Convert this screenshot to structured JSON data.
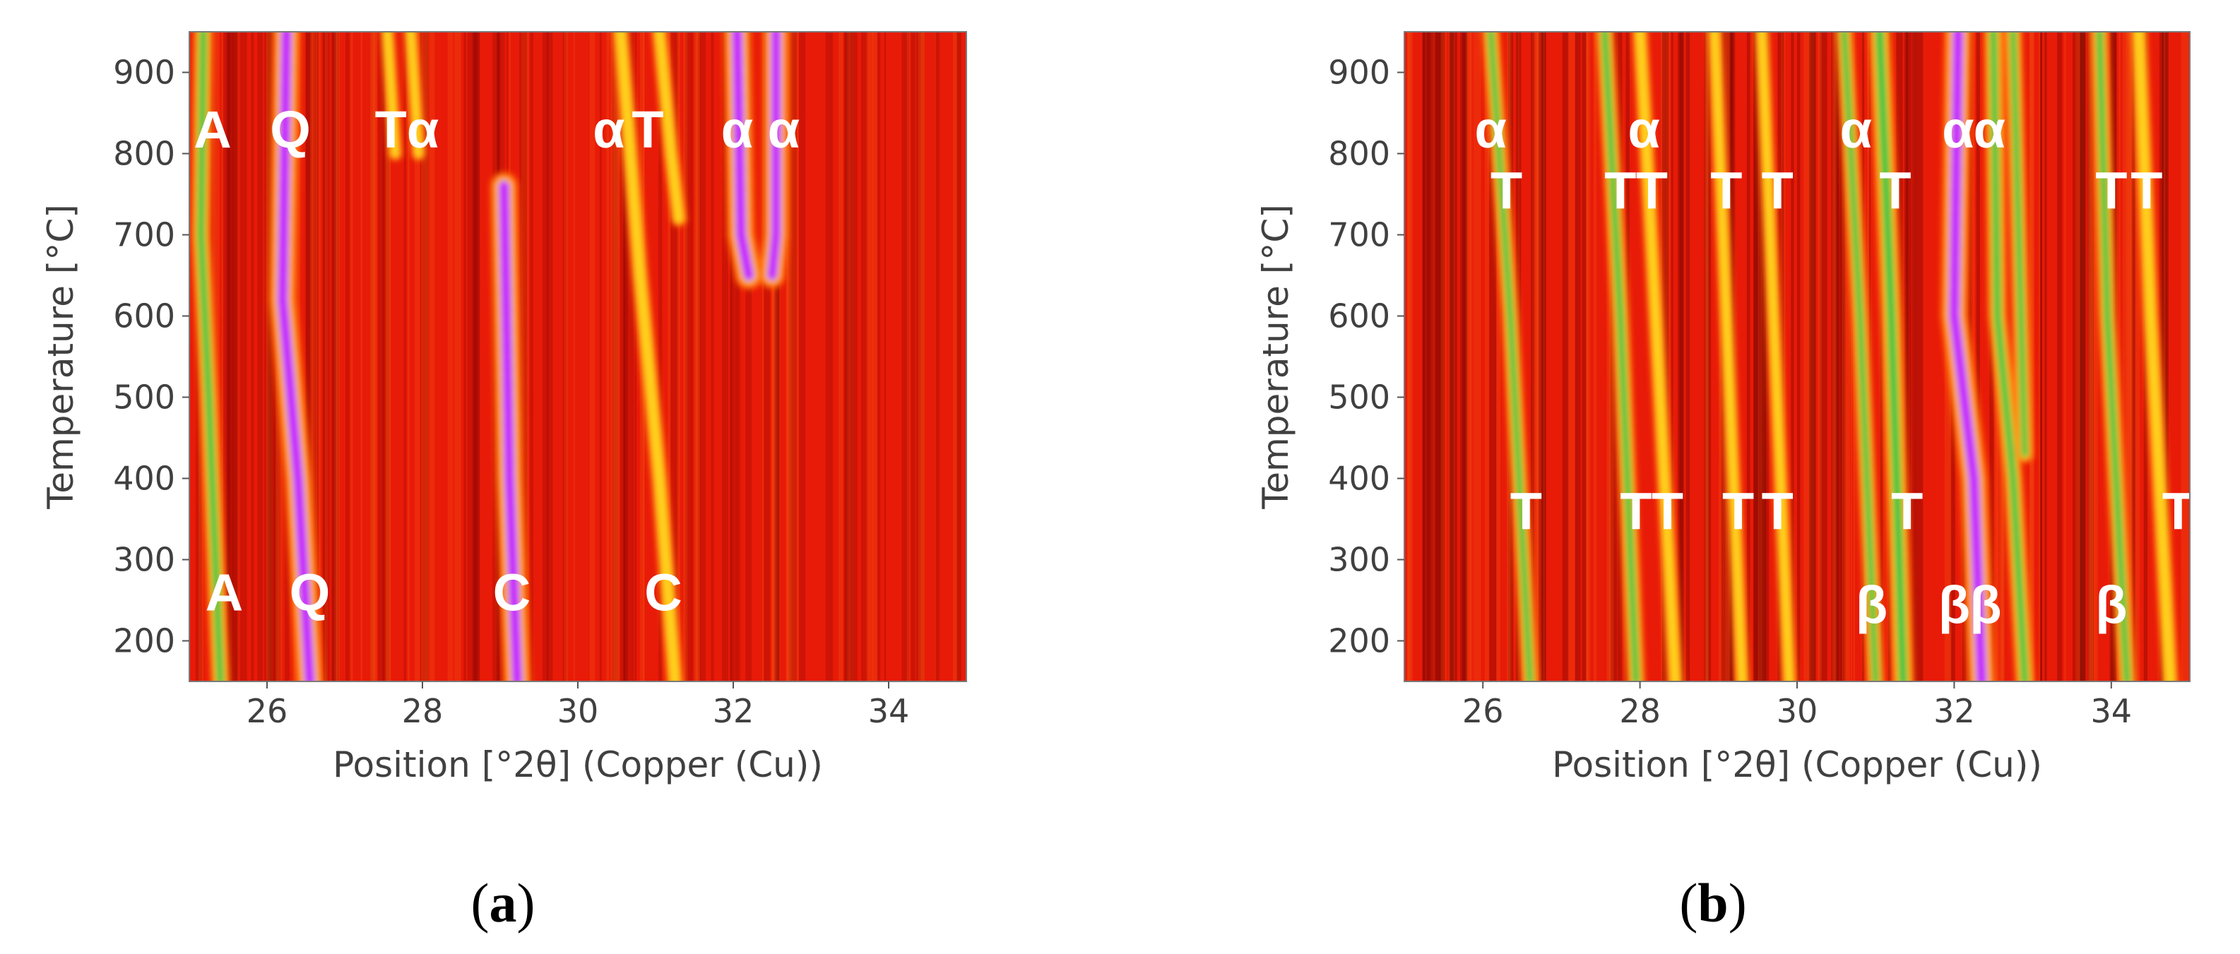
{
  "figure": {
    "captions": [
      "a",
      "b"
    ]
  },
  "chart_data": [
    {
      "type": "heatmap",
      "panel": "a",
      "xlabel": "Position [°2θ] (Copper (Cu))",
      "ylabel": "Temperature [°C]",
      "xlim": [
        25.0,
        35.0
      ],
      "ylim": [
        150,
        950
      ],
      "xticks": [
        26,
        28,
        30,
        32,
        34
      ],
      "yticks": [
        200,
        300,
        400,
        500,
        600,
        700,
        800,
        900
      ],
      "colors": {
        "background": "#e81a08",
        "dark": "#c10404",
        "warm": "#ff6a0c",
        "mid": "#ffd21a",
        "green": "#2fc445",
        "peak": "#c62cff"
      },
      "traces": [
        {
          "points": [
            [
              25.18,
              950
            ],
            [
              25.15,
              700
            ],
            [
              25.25,
              500
            ],
            [
              25.4,
              150
            ]
          ],
          "strength": 0.55
        },
        {
          "points": [
            [
              26.25,
              950
            ],
            [
              26.2,
              620
            ],
            [
              26.4,
              400
            ],
            [
              26.55,
              150
            ]
          ],
          "strength": 1.0
        },
        {
          "points": [
            [
              29.05,
              760
            ],
            [
              29.12,
              400
            ],
            [
              29.22,
              150
            ]
          ],
          "strength": 1.0
        },
        {
          "points": [
            [
              30.55,
              950
            ],
            [
              30.8,
              650
            ],
            [
              31.05,
              400
            ],
            [
              31.25,
              150
            ]
          ],
          "strength": 0.4
        },
        {
          "points": [
            [
              31.05,
              950
            ],
            [
              31.2,
              800
            ],
            [
              31.3,
              720
            ]
          ],
          "strength": 0.35
        },
        {
          "points": [
            [
              32.05,
              950
            ],
            [
              32.1,
              700
            ],
            [
              32.2,
              650
            ]
          ],
          "strength": 1.0
        },
        {
          "points": [
            [
              32.55,
              950
            ],
            [
              32.55,
              700
            ],
            [
              32.5,
              650
            ]
          ],
          "strength": 0.9
        },
        {
          "points": [
            [
              27.55,
              950
            ],
            [
              27.65,
              800
            ]
          ],
          "strength": 0.25
        },
        {
          "points": [
            [
              27.85,
              950
            ],
            [
              27.95,
              800
            ]
          ],
          "strength": 0.25
        }
      ],
      "annotations": [
        {
          "text": "A",
          "x": 25.3,
          "y": 830
        },
        {
          "text": "Q",
          "x": 26.3,
          "y": 830
        },
        {
          "text": "Tα",
          "x": 27.8,
          "y": 830
        },
        {
          "text": "α",
          "x": 30.4,
          "y": 830
        },
        {
          "text": "T",
          "x": 30.9,
          "y": 830
        },
        {
          "text": "α",
          "x": 32.05,
          "y": 830
        },
        {
          "text": "α",
          "x": 32.65,
          "y": 830
        },
        {
          "text": "A",
          "x": 25.45,
          "y": 260
        },
        {
          "text": "Q",
          "x": 26.55,
          "y": 260
        },
        {
          "text": "C",
          "x": 29.15,
          "y": 260
        },
        {
          "text": "C",
          "x": 31.1,
          "y": 260
        }
      ]
    },
    {
      "type": "heatmap",
      "panel": "b",
      "xlabel": "Position [°2θ] (Copper (Cu))",
      "ylabel": "Temperature [°C]",
      "xlim": [
        25.0,
        35.0
      ],
      "ylim": [
        150,
        950
      ],
      "xticks": [
        26,
        28,
        30,
        32,
        34
      ],
      "yticks": [
        200,
        300,
        400,
        500,
        600,
        700,
        800,
        900
      ],
      "colors": {
        "background": "#e81a08",
        "dark": "#a80202",
        "warm": "#ff6a0c",
        "mid": "#ffd21a",
        "green": "#2fc445",
        "peak": "#c62cff"
      },
      "traces": [
        {
          "points": [
            [
              26.1,
              950
            ],
            [
              26.35,
              600
            ],
            [
              26.6,
              150
            ]
          ],
          "strength": 0.45
        },
        {
          "points": [
            [
              27.55,
              950
            ],
            [
              27.75,
              600
            ],
            [
              27.95,
              150
            ]
          ],
          "strength": 0.5
        },
        {
          "points": [
            [
              28.0,
              950
            ],
            [
              28.2,
              600
            ],
            [
              28.45,
              150
            ]
          ],
          "strength": 0.35
        },
        {
          "points": [
            [
              28.95,
              950
            ],
            [
              29.1,
              600
            ],
            [
              29.3,
              150
            ]
          ],
          "strength": 0.3
        },
        {
          "points": [
            [
              29.55,
              950
            ],
            [
              29.7,
              600
            ],
            [
              29.9,
              150
            ]
          ],
          "strength": 0.3
        },
        {
          "points": [
            [
              30.6,
              950
            ],
            [
              30.8,
              600
            ],
            [
              31.0,
              150
            ]
          ],
          "strength": 0.45
        },
        {
          "points": [
            [
              31.05,
              950
            ],
            [
              31.2,
              600
            ],
            [
              31.35,
              150
            ]
          ],
          "strength": 0.7
        },
        {
          "points": [
            [
              32.05,
              950
            ],
            [
              32.0,
              600
            ],
            [
              32.25,
              400
            ],
            [
              32.35,
              150
            ]
          ],
          "strength": 1.0
        },
        {
          "points": [
            [
              32.5,
              950
            ],
            [
              32.55,
              600
            ],
            [
              32.75,
              400
            ],
            [
              32.9,
              150
            ]
          ],
          "strength": 0.55
        },
        {
          "points": [
            [
              32.75,
              950
            ],
            [
              32.85,
              600
            ],
            [
              32.9,
              430
            ]
          ],
          "strength": 0.45
        },
        {
          "points": [
            [
              33.85,
              950
            ],
            [
              33.95,
              600
            ],
            [
              34.2,
              150
            ]
          ],
          "strength": 0.5
        },
        {
          "points": [
            [
              34.35,
              950
            ],
            [
              34.5,
              600
            ],
            [
              34.75,
              150
            ]
          ],
          "strength": 0.4
        }
      ],
      "annotations": [
        {
          "text": "α",
          "x": 26.1,
          "y": 830
        },
        {
          "text": "α",
          "x": 28.05,
          "y": 830
        },
        {
          "text": "α",
          "x": 30.75,
          "y": 830
        },
        {
          "text": "α",
          "x": 32.05,
          "y": 830
        },
        {
          "text": "α",
          "x": 32.45,
          "y": 830
        },
        {
          "text": "T",
          "x": 26.3,
          "y": 755
        },
        {
          "text": "T",
          "x": 27.75,
          "y": 755
        },
        {
          "text": "T",
          "x": 28.15,
          "y": 755
        },
        {
          "text": "T",
          "x": 29.1,
          "y": 755
        },
        {
          "text": "T",
          "x": 29.75,
          "y": 755
        },
        {
          "text": "T",
          "x": 31.25,
          "y": 755
        },
        {
          "text": "T",
          "x": 34.0,
          "y": 755
        },
        {
          "text": "T",
          "x": 34.45,
          "y": 755
        },
        {
          "text": "T",
          "x": 26.55,
          "y": 360
        },
        {
          "text": "T",
          "x": 27.95,
          "y": 360
        },
        {
          "text": "T",
          "x": 28.35,
          "y": 360
        },
        {
          "text": "T",
          "x": 29.25,
          "y": 360
        },
        {
          "text": "T",
          "x": 29.75,
          "y": 360
        },
        {
          "text": "T",
          "x": 31.4,
          "y": 360
        },
        {
          "text": "T",
          "x": 34.85,
          "y": 360
        },
        {
          "text": "β",
          "x": 30.95,
          "y": 245
        },
        {
          "text": "β",
          "x": 32.0,
          "y": 245
        },
        {
          "text": "β",
          "x": 32.4,
          "y": 245
        },
        {
          "text": "β",
          "x": 34.0,
          "y": 245
        }
      ]
    }
  ]
}
